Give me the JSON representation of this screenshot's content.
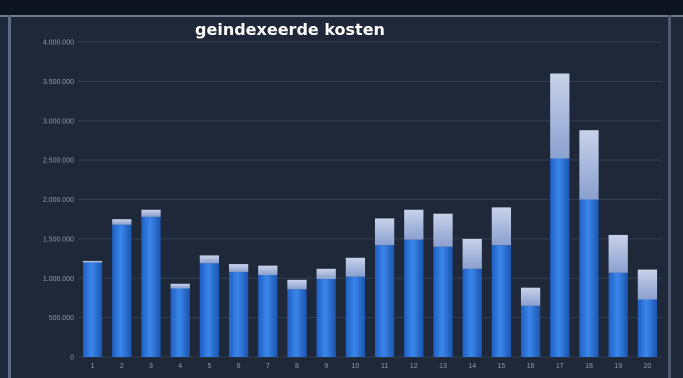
{
  "chart_data": {
    "type": "bar",
    "stacked": true,
    "title": "geindexeerde kosten",
    "xlabel": "",
    "ylabel": "",
    "ylim": [
      0,
      4000000
    ],
    "yticks": [
      "0",
      "500.000",
      "1.000.000",
      "1.500.000",
      "2.000.000",
      "2.500.000",
      "3.000.000",
      "3.500.000",
      "4.000.000"
    ],
    "grid": true,
    "legend": "none",
    "categories": [
      "1",
      "2",
      "3",
      "4",
      "5",
      "6",
      "7",
      "8",
      "9",
      "10",
      "11",
      "12",
      "13",
      "14",
      "15",
      "16",
      "17",
      "18",
      "19",
      "20"
    ],
    "series": [
      {
        "color": "#2a6fd6",
        "values": [
          1200000,
          1680000,
          1780000,
          870000,
          1190000,
          1080000,
          1040000,
          860000,
          990000,
          1020000,
          1420000,
          1490000,
          1400000,
          1120000,
          1420000,
          650000,
          2520000,
          2000000,
          1070000,
          730000
        ]
      },
      {
        "color": "#b9c7e8",
        "values": [
          20000,
          70000,
          90000,
          60000,
          100000,
          100000,
          120000,
          120000,
          130000,
          240000,
          340000,
          380000,
          420000,
          380000,
          480000,
          230000,
          1080000,
          880000,
          480000,
          380000
        ]
      }
    ]
  }
}
